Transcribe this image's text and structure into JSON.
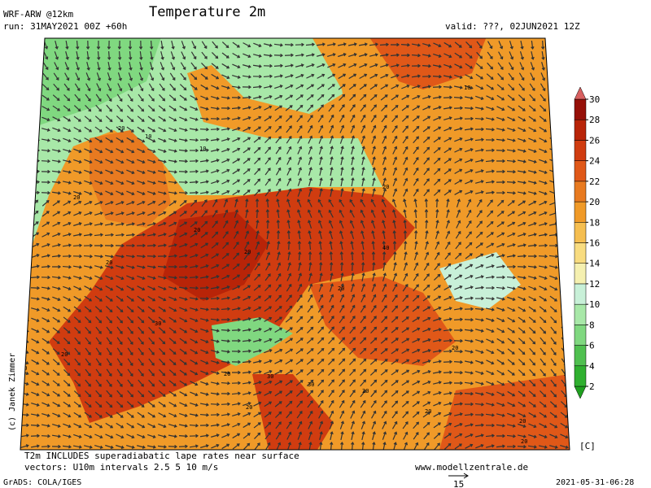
{
  "header": {
    "model": "WRF-ARW @12km",
    "run": "run: 31MAY2021 00Z +60h",
    "title": "Temperature 2m",
    "valid": "valid: ???, 02JUN2021 12Z"
  },
  "colorbar": {
    "levels": [
      2,
      4,
      6,
      8,
      10,
      12,
      14,
      16,
      18,
      20,
      22,
      24,
      26,
      28,
      30
    ],
    "unit": "[C]",
    "colors": [
      "#20a020",
      "#30b030",
      "#50c050",
      "#80d880",
      "#a8e8a8",
      "#c8f0d8",
      "#f5f0b0",
      "#f8dc80",
      "#f5be50",
      "#f09a28",
      "#e87a20",
      "#e05818",
      "#d03c10",
      "#b82408",
      "#961008",
      "#d86060"
    ]
  },
  "map_labels": [
    20,
    10,
    10,
    20,
    20,
    20,
    10,
    20,
    40,
    20,
    20,
    30,
    20,
    20,
    20,
    20,
    30,
    30,
    20,
    20,
    20,
    20,
    20
  ],
  "footer": {
    "credit": "(c) Janek Zimmer",
    "note1": "T2m INCLUDES superadiabatic lape rates near surface",
    "note2": "vectors: U10m intervals 2.5 5 10 m/s",
    "site": "www.modellzentrale.de",
    "grads": "GrADS: COLA/IGES",
    "vector_ref": 15,
    "timestamp": "2021-05-31-06:28"
  }
}
